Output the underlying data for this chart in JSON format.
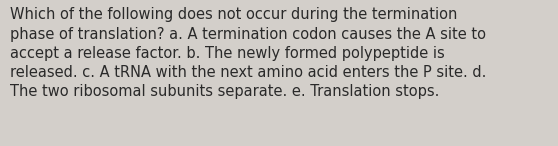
{
  "text": "Which of the following does not occur during the termination\nphase of translation? a. A termination codon causes the A site to\naccept a release factor. b. The newly formed polypeptide is\nreleased. c. A tRNA with the next amino acid enters the P site. d.\nThe two ribosomal subunits separate. e. Translation stops.",
  "background_color": "#d3cfca",
  "text_color": "#2a2a2a",
  "font_size": 10.5,
  "font_family": "DejaVu Sans",
  "fig_width": 5.58,
  "fig_height": 1.46,
  "dpi": 100
}
